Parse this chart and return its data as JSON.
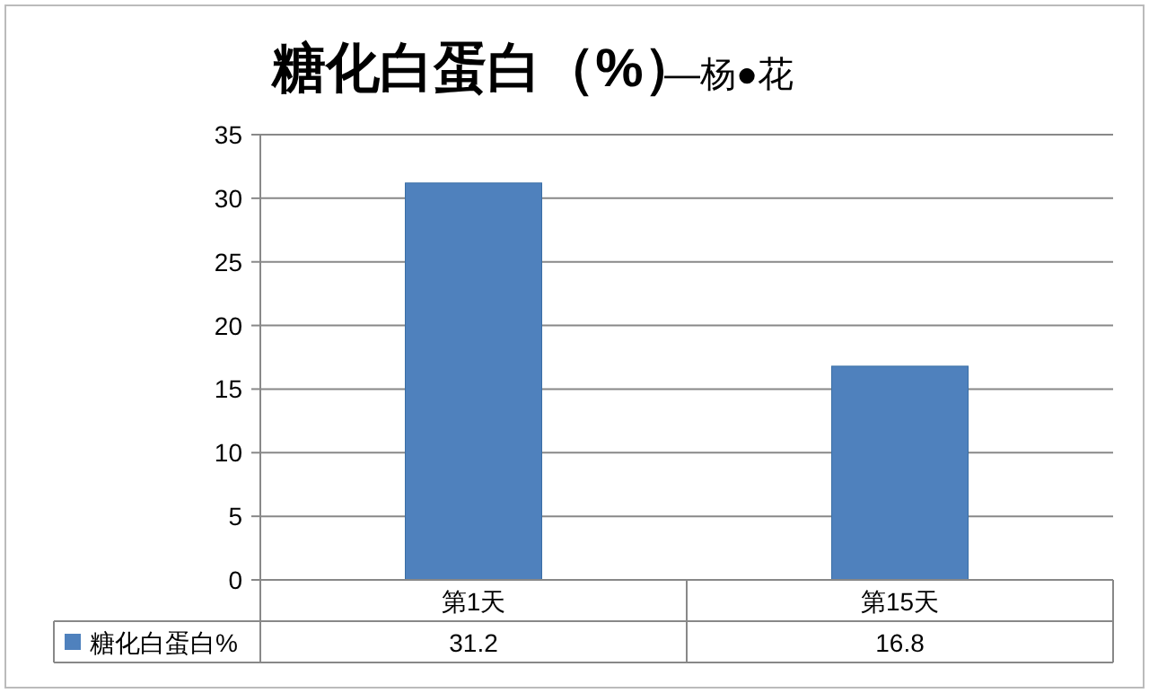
{
  "chart_data": {
    "type": "bar",
    "title": "糖化白蛋白（%）",
    "annotations": [
      "—杨●花"
    ],
    "categories": [
      "第1天",
      "第15天"
    ],
    "series": [
      {
        "name": "糖化白蛋白%",
        "color": "#4f81bd",
        "values": [
          31.2,
          16.8
        ]
      }
    ],
    "ylim": [
      0,
      35
    ],
    "yticks": [
      0,
      5,
      10,
      15,
      20,
      25,
      30,
      35
    ],
    "grid": "y",
    "data_labels": true,
    "legend": "bottom"
  }
}
